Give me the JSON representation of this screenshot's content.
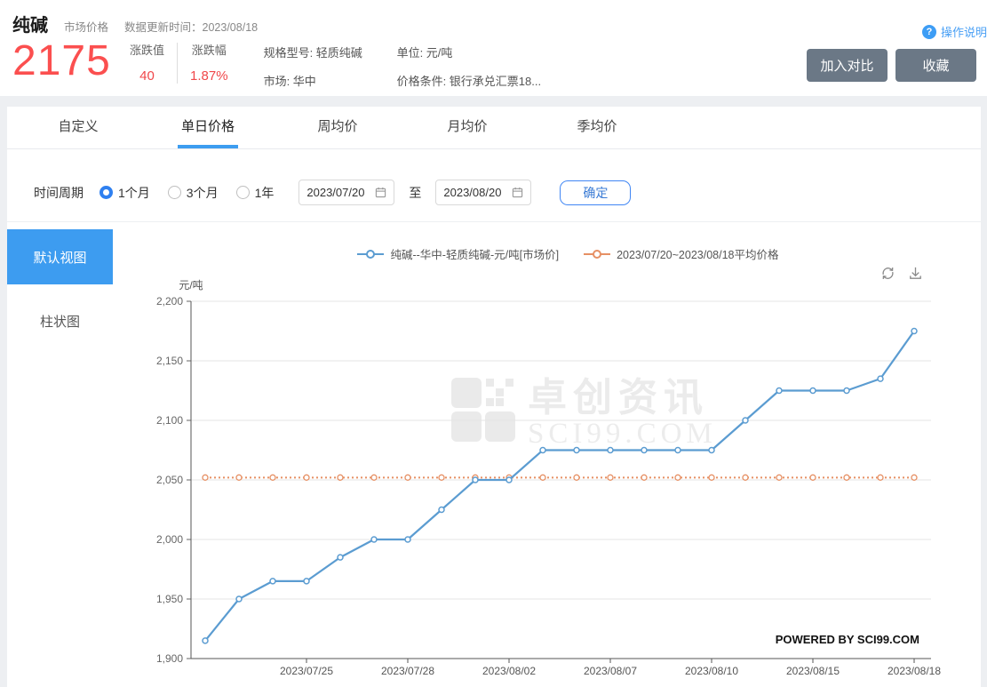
{
  "colors": {
    "accent_blue": "#3d9cf0",
    "price_red": "#fb4f4f",
    "change_red": "#f0474a",
    "button_slate": "#6b7886",
    "series_blue": "#5b9cd1",
    "series_orange": "#e69064"
  },
  "header": {
    "title": "纯碱",
    "subtitle": "市场价格",
    "update_label": "数据更新时间：",
    "update_value": "2023/08/18",
    "price": "2175",
    "change_label": "涨跌值",
    "change_value": "40",
    "change_pct_label": "涨跌幅",
    "change_pct_value": "1.87%",
    "spec": "规格型号: 轻质纯碱",
    "unit": "单位: 元/吨",
    "market": "市场: 华中",
    "condition": "价格条件: 银行承兑汇票18...",
    "help_icon_glyph": "?",
    "help_label": "操作说明",
    "compare_button": "加入对比",
    "favorite_button": "收藏"
  },
  "tabs": [
    {
      "label": "自定义",
      "active": false
    },
    {
      "label": "单日价格",
      "active": true
    },
    {
      "label": "周均价",
      "active": false
    },
    {
      "label": "月均价",
      "active": false
    },
    {
      "label": "季均价",
      "active": false
    }
  ],
  "filter": {
    "period_label": "时间周期",
    "options": [
      {
        "label": "1个月",
        "selected": true
      },
      {
        "label": "3个月",
        "selected": false
      },
      {
        "label": "1年",
        "selected": false
      }
    ],
    "start_date": "2023/07/20",
    "to_label": "至",
    "end_date": "2023/08/20",
    "confirm_button": "确定"
  },
  "sidebar": {
    "items": [
      {
        "label": "默认视图",
        "active": true
      },
      {
        "label": "柱状图",
        "active": false
      }
    ]
  },
  "chart_data": {
    "type": "line",
    "unit_label": "元/吨",
    "x": [
      "2023/07/20",
      "2023/07/21",
      "2023/07/24",
      "2023/07/25",
      "2023/07/26",
      "2023/07/27",
      "2023/07/28",
      "2023/07/31",
      "2023/08/01",
      "2023/08/02",
      "2023/08/03",
      "2023/08/04",
      "2023/08/07",
      "2023/08/08",
      "2023/08/09",
      "2023/08/10",
      "2023/08/11",
      "2023/08/14",
      "2023/08/15",
      "2023/08/16",
      "2023/08/17",
      "2023/08/18"
    ],
    "x_tick_indices": [
      3,
      6,
      9,
      12,
      15,
      18,
      21
    ],
    "y_ticks": [
      1900,
      1950,
      2000,
      2050,
      2100,
      2150,
      2200
    ],
    "ylim": [
      1900,
      2200
    ],
    "grid": "horizontal-only",
    "legend_position": "top-center",
    "series": [
      {
        "name": "纯碱--华中-轻质纯碱-元/吨[市场价]",
        "type": "line",
        "color": "#5b9cd1",
        "values": [
          1915,
          1950,
          1965,
          1965,
          1985,
          2000,
          2000,
          2025,
          2050,
          2050,
          2075,
          2075,
          2075,
          2075,
          2075,
          2075,
          2100,
          2125,
          2125,
          2125,
          2135,
          2175
        ]
      },
      {
        "name": "2023/07/20~2023/08/18平均价格",
        "type": "line",
        "style": "dotted",
        "color": "#e69064",
        "value": 2052
      }
    ],
    "watermark": {
      "logo": "sci99-grid-logo",
      "line1": "卓创资讯",
      "line2": "SCI99.COM"
    },
    "powered_by": "POWERED BY SCI99.COM"
  }
}
